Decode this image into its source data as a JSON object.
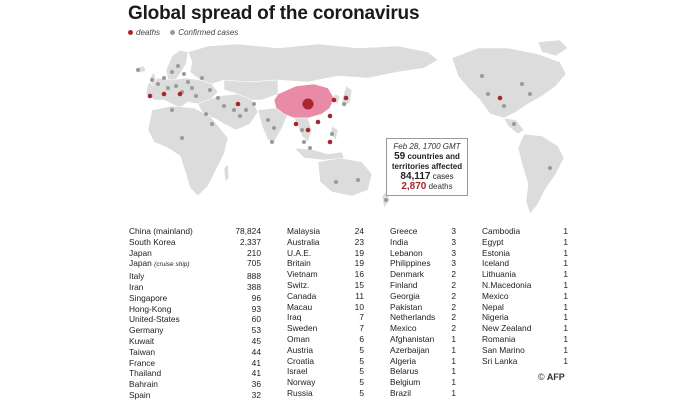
{
  "title": "Global spread of the coronavirus",
  "legend": {
    "deaths_label": "deaths",
    "cases_label": "Confirmed cases",
    "deaths_color": "#a8262d",
    "cases_color": "#9a9a9a"
  },
  "highlight_color": "#e98aa6",
  "land_color": "#dcdcdc",
  "info": {
    "date": "Feb 28, 1700 GMT",
    "countries_count": "59",
    "countries_text1": "countries and",
    "countries_text2": "territories affected",
    "cases_count": "84,117",
    "cases_text": "cases",
    "deaths_count": "2,870",
    "deaths_text": "deaths"
  },
  "table": [
    [
      {
        "name": "China (mainland)",
        "value": "78,824"
      },
      {
        "name": "South Korea",
        "value": "2,337"
      },
      {
        "name": "Japan",
        "value": "210"
      },
      {
        "name": "Japan",
        "sub": "(cruise ship)",
        "value": "705"
      },
      {
        "name": "Italy",
        "value": "888"
      },
      {
        "name": "Iran",
        "value": "388"
      },
      {
        "name": "Singapore",
        "value": "96"
      },
      {
        "name": "Hong-Kong",
        "value": "93"
      },
      {
        "name": "United-States",
        "value": "60"
      },
      {
        "name": "Germany",
        "value": "53"
      },
      {
        "name": "Kuwait",
        "value": "45"
      },
      {
        "name": "Taiwan",
        "value": "44"
      },
      {
        "name": "France",
        "value": "41"
      },
      {
        "name": "Thailand",
        "value": "41"
      },
      {
        "name": "Bahrain",
        "value": "36"
      },
      {
        "name": "Spain",
        "value": "32"
      }
    ],
    [
      {
        "name": "Malaysia",
        "value": "24"
      },
      {
        "name": "Australia",
        "value": "23"
      },
      {
        "name": "U.A.E.",
        "value": "19"
      },
      {
        "name": "Britain",
        "value": "19"
      },
      {
        "name": "Vietnam",
        "value": "16"
      },
      {
        "name": "Switz.",
        "value": "15"
      },
      {
        "name": "Canada",
        "value": "11"
      },
      {
        "name": "Macau",
        "value": "10"
      },
      {
        "name": "Iraq",
        "value": "7"
      },
      {
        "name": "Sweden",
        "value": "7"
      },
      {
        "name": "Oman",
        "value": "6"
      },
      {
        "name": "Austria",
        "value": "5"
      },
      {
        "name": "Croatia",
        "value": "5"
      },
      {
        "name": "Israel",
        "value": "5"
      },
      {
        "name": "Norway",
        "value": "5"
      },
      {
        "name": "Russia",
        "value": "5"
      }
    ],
    [
      {
        "name": "Greece",
        "value": "3"
      },
      {
        "name": "India",
        "value": "3"
      },
      {
        "name": "Lebanon",
        "value": "3"
      },
      {
        "name": "Philippines",
        "value": "3"
      },
      {
        "name": "Denmark",
        "value": "2"
      },
      {
        "name": "Finland",
        "value": "2"
      },
      {
        "name": "Georgia",
        "value": "2"
      },
      {
        "name": "Pakistan",
        "value": "2"
      },
      {
        "name": "Netherlands",
        "value": "2"
      },
      {
        "name": "Mexico",
        "value": "2"
      },
      {
        "name": "Afghanistan",
        "value": "1"
      },
      {
        "name": "Azerbaijan",
        "value": "1"
      },
      {
        "name": "Algeria",
        "value": "1"
      },
      {
        "name": "Belarus",
        "value": "1"
      },
      {
        "name": "Belgium",
        "value": "1"
      },
      {
        "name": "Brazil",
        "value": "1"
      }
    ],
    [
      {
        "name": "Cambodia",
        "value": "1"
      },
      {
        "name": "Egypt",
        "value": "1"
      },
      {
        "name": "Estonia",
        "value": "1"
      },
      {
        "name": "Iceland",
        "value": "1"
      },
      {
        "name": "Lithuania",
        "value": "1"
      },
      {
        "name": "N.Macedonia",
        "value": "1"
      },
      {
        "name": "Mexico",
        "value": "1"
      },
      {
        "name": "Nepal",
        "value": "1"
      },
      {
        "name": "Nigeria",
        "value": "1"
      },
      {
        "name": "New Zealand",
        "value": "1"
      },
      {
        "name": "Romania",
        "value": "1"
      },
      {
        "name": "San Marino",
        "value": "1"
      },
      {
        "name": "Sri Lanka",
        "value": "1"
      }
    ]
  ],
  "credit": "AFP",
  "credit_symbol": "©"
}
